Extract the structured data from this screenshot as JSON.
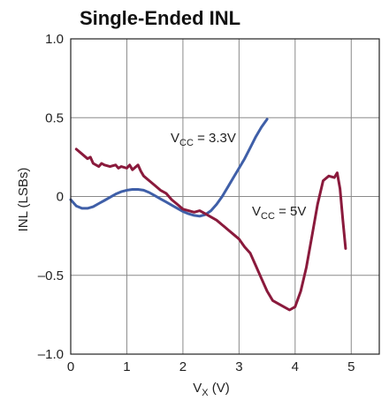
{
  "chart_data": {
    "type": "line",
    "title": "Single-Ended INL",
    "xlabel": {
      "main": "V",
      "sub": "X",
      "rest": " (V)"
    },
    "ylabel": "INL (LSBs)",
    "xlim": [
      0,
      5.5
    ],
    "ylim": [
      -1.0,
      1.0
    ],
    "x_ticks": [
      0,
      1,
      2,
      3,
      4,
      5
    ],
    "y_ticks": [
      -1.0,
      -0.5,
      0,
      0.5,
      1.0
    ],
    "x_tick_labels": [
      "0",
      "1",
      "2",
      "3",
      "4",
      "5"
    ],
    "y_tick_labels": [
      "–1.0",
      "–0.5",
      "0",
      "0.5",
      "1.0"
    ],
    "grid": true,
    "series": [
      {
        "label": {
          "main": "V",
          "sub": "CC",
          "rest": " = 3.3V"
        },
        "color": "#3f5fa8",
        "x": [
          0.0,
          0.1,
          0.2,
          0.3,
          0.4,
          0.5,
          0.6,
          0.7,
          0.8,
          0.9,
          1.0,
          1.1,
          1.2,
          1.3,
          1.4,
          1.5,
          1.6,
          1.7,
          1.8,
          1.9,
          2.0,
          2.1,
          2.2,
          2.3,
          2.4,
          2.5,
          2.6,
          2.7,
          2.8,
          2.9,
          3.0,
          3.1,
          3.2,
          3.3,
          3.4,
          3.5
        ],
        "y": [
          -0.02,
          -0.06,
          -0.075,
          -0.075,
          -0.065,
          -0.045,
          -0.025,
          -0.005,
          0.015,
          0.03,
          0.04,
          0.045,
          0.045,
          0.04,
          0.025,
          0.005,
          -0.015,
          -0.035,
          -0.055,
          -0.075,
          -0.095,
          -0.11,
          -0.12,
          -0.125,
          -0.115,
          -0.09,
          -0.05,
          0.0,
          0.06,
          0.12,
          0.18,
          0.24,
          0.31,
          0.38,
          0.44,
          0.49
        ]
      },
      {
        "label": {
          "main": "V",
          "sub": "CC",
          "rest": " = 5V"
        },
        "color": "#8a1a3c",
        "x": [
          0.1,
          0.2,
          0.3,
          0.35,
          0.4,
          0.5,
          0.55,
          0.6,
          0.7,
          0.8,
          0.85,
          0.9,
          1.0,
          1.05,
          1.1,
          1.2,
          1.25,
          1.3,
          1.4,
          1.5,
          1.6,
          1.7,
          1.8,
          1.9,
          2.0,
          2.1,
          2.2,
          2.3,
          2.4,
          2.5,
          2.6,
          2.7,
          2.8,
          2.9,
          3.0,
          3.1,
          3.2,
          3.3,
          3.4,
          3.5,
          3.6,
          3.7,
          3.8,
          3.9,
          4.0,
          4.1,
          4.2,
          4.3,
          4.4,
          4.5,
          4.6,
          4.7,
          4.75,
          4.8,
          4.85,
          4.9
        ],
        "y": [
          0.3,
          0.27,
          0.24,
          0.25,
          0.21,
          0.19,
          0.21,
          0.2,
          0.19,
          0.2,
          0.18,
          0.19,
          0.18,
          0.2,
          0.17,
          0.2,
          0.16,
          0.13,
          0.1,
          0.07,
          0.04,
          0.02,
          -0.02,
          -0.05,
          -0.08,
          -0.09,
          -0.1,
          -0.09,
          -0.11,
          -0.13,
          -0.15,
          -0.18,
          -0.21,
          -0.24,
          -0.27,
          -0.32,
          -0.36,
          -0.44,
          -0.52,
          -0.6,
          -0.66,
          -0.68,
          -0.7,
          -0.72,
          -0.7,
          -0.6,
          -0.45,
          -0.25,
          -0.05,
          0.1,
          0.13,
          0.12,
          0.15,
          0.05,
          -0.15,
          -0.33
        ]
      }
    ]
  }
}
